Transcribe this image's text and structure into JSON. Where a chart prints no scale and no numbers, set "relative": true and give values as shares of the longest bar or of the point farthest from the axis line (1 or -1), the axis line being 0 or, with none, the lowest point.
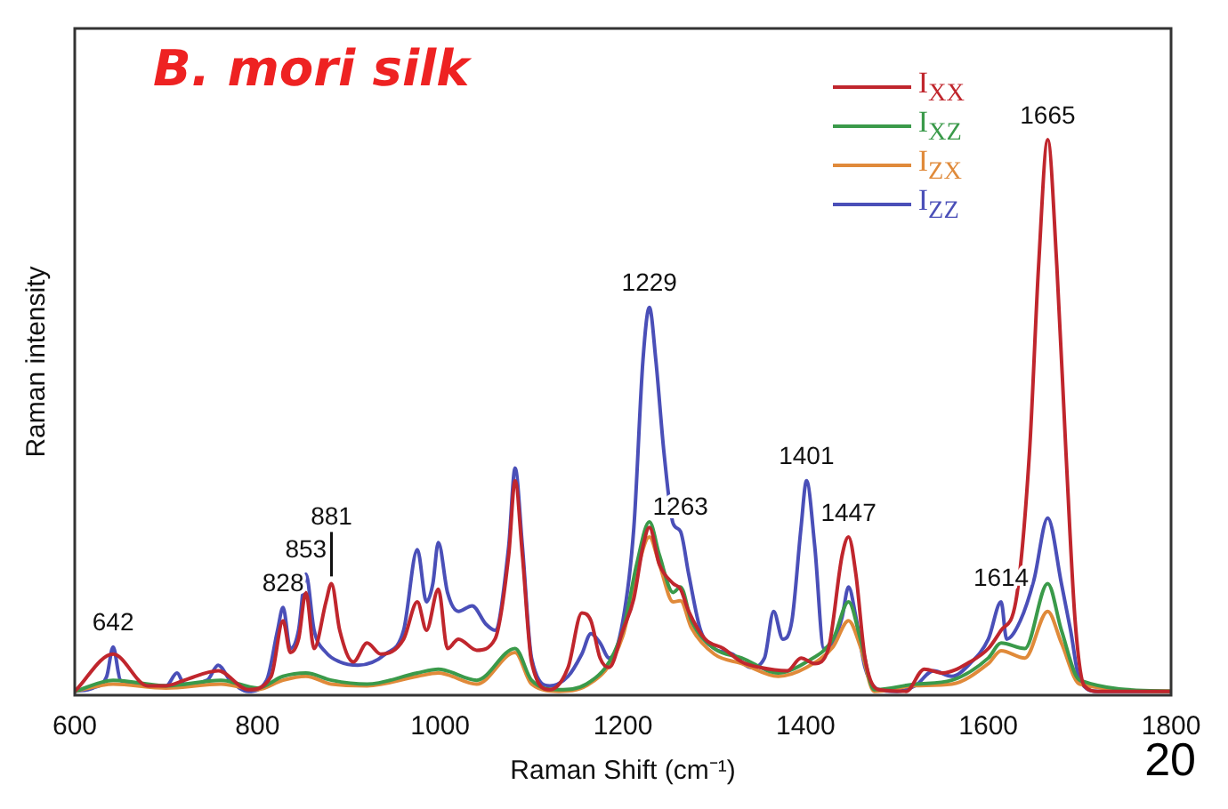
{
  "chart_data": {
    "type": "line",
    "title": "B. mori silk",
    "xlabel": "Raman Shift (cm⁻¹)",
    "ylabel": "Raman intensity",
    "relative": true,
    "xlim": [
      600,
      1800
    ],
    "xticks": [
      600,
      800,
      1000,
      1200,
      1400,
      1600,
      1800
    ],
    "grid": false,
    "legend": "top right",
    "marker": "none",
    "line_style": "solid",
    "series": [
      {
        "name": "I$_{XX}$",
        "color": "#c0262d",
        "x": [
          600,
          642,
          680,
          700,
          720,
          757,
          790,
          815,
          828,
          836,
          845,
          853,
          862,
          875,
          881,
          890,
          905,
          920,
          935,
          960,
          975,
          985,
          998,
          1008,
          1020,
          1040,
          1060,
          1075,
          1082,
          1090,
          1100,
          1120,
          1140,
          1155,
          1165,
          1175,
          1185,
          1200,
          1212,
          1222,
          1229,
          1240,
          1255,
          1263,
          1272,
          1290,
          1310,
          1330,
          1350,
          1380,
          1395,
          1410,
          1425,
          1440,
          1447,
          1455,
          1465,
          1480,
          1510,
          1530,
          1550,
          1580,
          1600,
          1614,
          1630,
          1645,
          1655,
          1665,
          1675,
          1685,
          1695,
          1705,
          1720,
          1800
        ],
        "values": [
          0.007,
          0.074,
          0.017,
          0.017,
          0.027,
          0.044,
          0.01,
          0.034,
          0.134,
          0.077,
          0.101,
          0.185,
          0.084,
          0.168,
          0.201,
          0.117,
          0.06,
          0.094,
          0.074,
          0.101,
          0.168,
          0.117,
          0.191,
          0.084,
          0.101,
          0.081,
          0.101,
          0.252,
          0.386,
          0.252,
          0.06,
          0.01,
          0.05,
          0.148,
          0.134,
          0.067,
          0.05,
          0.117,
          0.174,
          0.268,
          0.302,
          0.235,
          0.201,
          0.191,
          0.151,
          0.101,
          0.084,
          0.06,
          0.05,
          0.044,
          0.067,
          0.057,
          0.084,
          0.252,
          0.285,
          0.218,
          0.067,
          0.01,
          0.007,
          0.047,
          0.04,
          0.06,
          0.084,
          0.117,
          0.168,
          0.436,
          0.772,
          1,
          0.772,
          0.436,
          0.134,
          0.017,
          0.007,
          0.007
        ]
      },
      {
        "name": "I$_{XZ}$",
        "color": "#3a9a4a",
        "x": [
          600,
          642,
          700,
          760,
          800,
          828,
          853,
          881,
          920,
          975,
          998,
          1040,
          1082,
          1100,
          1130,
          1160,
          1200,
          1215,
          1229,
          1240,
          1255,
          1263,
          1275,
          1300,
          1330,
          1370,
          1401,
          1430,
          1447,
          1460,
          1475,
          1520,
          1560,
          1600,
          1614,
          1640,
          1665,
          1680,
          1700,
          1800
        ],
        "values": [
          0.007,
          0.027,
          0.017,
          0.027,
          0.013,
          0.034,
          0.04,
          0.027,
          0.02,
          0.04,
          0.047,
          0.027,
          0.084,
          0.027,
          0.01,
          0.02,
          0.117,
          0.235,
          0.312,
          0.252,
          0.185,
          0.195,
          0.134,
          0.084,
          0.067,
          0.04,
          0.06,
          0.101,
          0.168,
          0.101,
          0.01,
          0.02,
          0.027,
          0.067,
          0.094,
          0.084,
          0.201,
          0.117,
          0.027,
          0.007
        ]
      },
      {
        "name": "I$_{ZX}$",
        "color": "#e08a3a",
        "x": [
          600,
          642,
          700,
          760,
          800,
          828,
          853,
          881,
          920,
          975,
          998,
          1040,
          1082,
          1100,
          1130,
          1160,
          1200,
          1215,
          1229,
          1240,
          1255,
          1263,
          1275,
          1300,
          1330,
          1370,
          1401,
          1430,
          1447,
          1460,
          1475,
          1520,
          1560,
          1600,
          1614,
          1640,
          1665,
          1680,
          1700,
          1800
        ],
        "values": [
          0.007,
          0.02,
          0.013,
          0.02,
          0.01,
          0.027,
          0.034,
          0.02,
          0.017,
          0.034,
          0.04,
          0.02,
          0.077,
          0.02,
          0.007,
          0.017,
          0.107,
          0.22,
          0.285,
          0.235,
          0.168,
          0.17,
          0.121,
          0.074,
          0.057,
          0.034,
          0.05,
          0.087,
          0.134,
          0.087,
          0.007,
          0.017,
          0.02,
          0.057,
          0.08,
          0.067,
          0.151,
          0.094,
          0.02,
          0.007
        ]
      },
      {
        "name": "I$_{ZZ}$",
        "color": "#4a4fb8",
        "x": [
          600,
          620,
          635,
          642,
          650,
          680,
          700,
          712,
          720,
          745,
          757,
          770,
          790,
          810,
          822,
          828,
          836,
          845,
          853,
          862,
          875,
          890,
          910,
          940,
          960,
          975,
          985,
          992,
          998,
          1008,
          1020,
          1035,
          1050,
          1060,
          1075,
          1082,
          1090,
          1100,
          1120,
          1140,
          1155,
          1165,
          1175,
          1185,
          1200,
          1212,
          1222,
          1229,
          1236,
          1245,
          1255,
          1263,
          1272,
          1285,
          1300,
          1320,
          1340,
          1355,
          1365,
          1375,
          1385,
          1395,
          1401,
          1410,
          1420,
          1430,
          1440,
          1447,
          1455,
          1465,
          1480,
          1500,
          1520,
          1540,
          1560,
          1580,
          1600,
          1614,
          1620,
          1635,
          1650,
          1665,
          1680,
          1690,
          1700,
          1720,
          1800
        ],
        "values": [
          0.007,
          0.013,
          0.034,
          0.087,
          0.027,
          0.017,
          0.017,
          0.04,
          0.02,
          0.027,
          0.054,
          0.027,
          0.007,
          0.027,
          0.117,
          0.158,
          0.084,
          0.117,
          0.218,
          0.117,
          0.077,
          0.06,
          0.054,
          0.074,
          0.117,
          0.262,
          0.168,
          0.201,
          0.275,
          0.185,
          0.151,
          0.161,
          0.128,
          0.117,
          0.268,
          0.409,
          0.268,
          0.067,
          0.017,
          0.034,
          0.074,
          0.111,
          0.094,
          0.067,
          0.134,
          0.302,
          0.604,
          0.698,
          0.604,
          0.436,
          0.309,
          0.295,
          0.218,
          0.117,
          0.084,
          0.074,
          0.05,
          0.067,
          0.151,
          0.101,
          0.134,
          0.302,
          0.386,
          0.268,
          0.084,
          0.094,
          0.141,
          0.195,
          0.141,
          0.05,
          0.01,
          0.007,
          0.017,
          0.044,
          0.034,
          0.057,
          0.101,
          0.168,
          0.101,
          0.134,
          0.208,
          0.319,
          0.201,
          0.117,
          0.027,
          0.007,
          0.007
        ]
      }
    ],
    "annotations": [
      {
        "text": "642",
        "x": 642,
        "y": 0.087
      },
      {
        "text": "828",
        "x": 828,
        "y": 0.158
      },
      {
        "text": "853",
        "x": 853,
        "y": 0.218
      },
      {
        "text": "881",
        "x": 881,
        "y": 0.201
      },
      {
        "text": "1229",
        "x": 1229,
        "y": 0.698
      },
      {
        "text": "1263",
        "x": 1263,
        "y": 0.295
      },
      {
        "text": "1401",
        "x": 1401,
        "y": 0.386
      },
      {
        "text": "1447",
        "x": 1447,
        "y": 0.285
      },
      {
        "text": "1614",
        "x": 1614,
        "y": 0.168
      },
      {
        "text": "1665",
        "x": 1665,
        "y": 1
      },
      "20"
    ]
  }
}
